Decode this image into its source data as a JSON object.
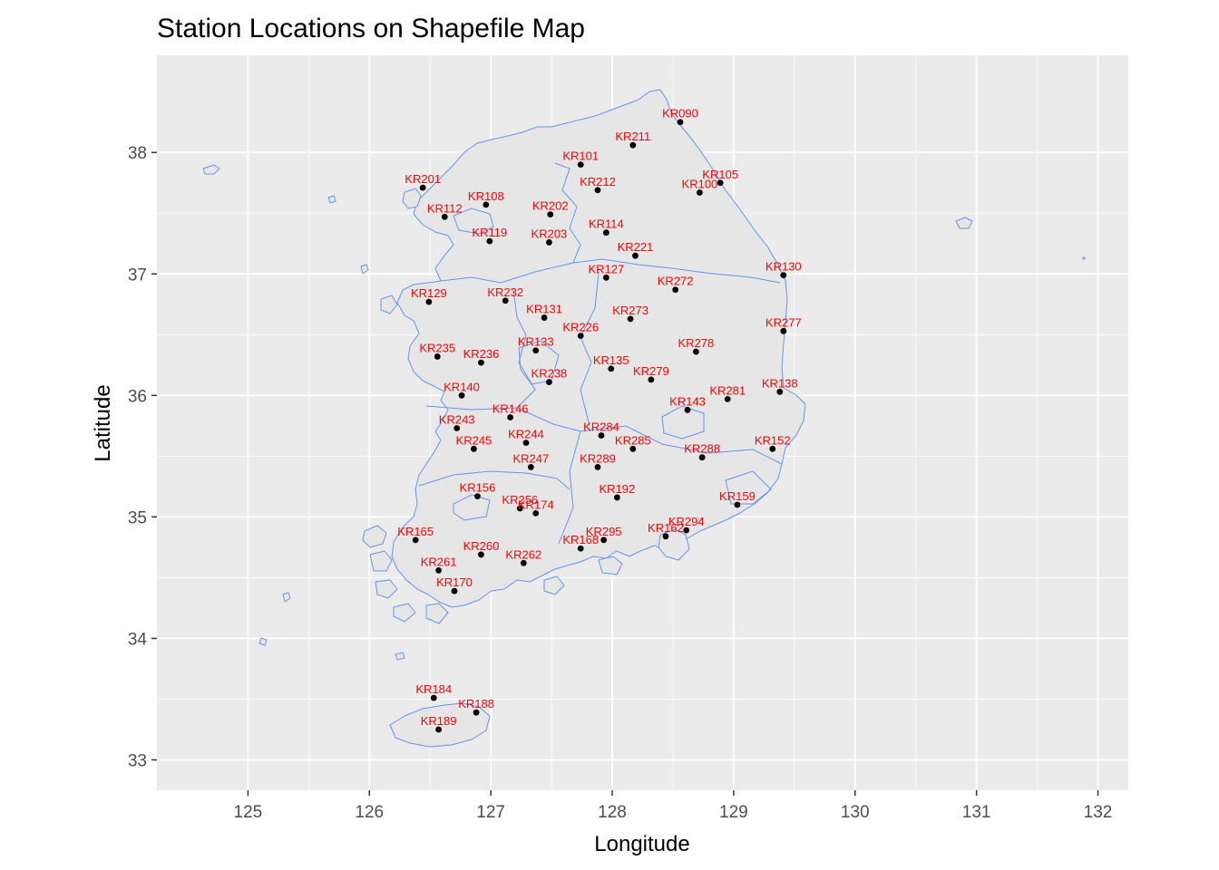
{
  "chart_data": {
    "type": "scatter",
    "title": "Station Locations on Shapefile Map",
    "xlabel": "Longitude",
    "ylabel": "Latitude",
    "xlim": [
      124.25,
      132.25
    ],
    "ylim": [
      32.75,
      38.8
    ],
    "x_ticks": [
      125,
      126,
      127,
      128,
      129,
      130,
      131,
      132
    ],
    "y_ticks": [
      33,
      34,
      35,
      36,
      37,
      38
    ],
    "grid": true,
    "colors": {
      "panel": "#ebebeb",
      "grid": "#ffffff",
      "land_fill": "#e6e6e6",
      "boundary": "#6495ed",
      "point": "#000000",
      "label": "#ff0000"
    },
    "stations": [
      {
        "id": "KR090",
        "lon": 128.56,
        "lat": 38.25
      },
      {
        "id": "KR211",
        "lon": 128.17,
        "lat": 38.06
      },
      {
        "id": "KR101",
        "lon": 127.74,
        "lat": 37.9
      },
      {
        "id": "KR105",
        "lon": 128.89,
        "lat": 37.75
      },
      {
        "id": "KR201",
        "lon": 126.44,
        "lat": 37.71
      },
      {
        "id": "KR212",
        "lon": 127.88,
        "lat": 37.69
      },
      {
        "id": "KR100",
        "lon": 128.72,
        "lat": 37.67
      },
      {
        "id": "KR108",
        "lon": 126.96,
        "lat": 37.57
      },
      {
        "id": "KR202",
        "lon": 127.49,
        "lat": 37.49
      },
      {
        "id": "KR112",
        "lon": 126.62,
        "lat": 37.47
      },
      {
        "id": "KR114",
        "lon": 127.95,
        "lat": 37.34
      },
      {
        "id": "KR119",
        "lon": 126.99,
        "lat": 37.27
      },
      {
        "id": "KR203",
        "lon": 127.48,
        "lat": 37.26
      },
      {
        "id": "KR221",
        "lon": 128.19,
        "lat": 37.15
      },
      {
        "id": "KR130",
        "lon": 129.41,
        "lat": 36.99
      },
      {
        "id": "KR127",
        "lon": 127.95,
        "lat": 36.97
      },
      {
        "id": "KR272",
        "lon": 128.52,
        "lat": 36.87
      },
      {
        "id": "KR129",
        "lon": 126.49,
        "lat": 36.77
      },
      {
        "id": "KR232",
        "lon": 127.12,
        "lat": 36.78
      },
      {
        "id": "KR131",
        "lon": 127.44,
        "lat": 36.64
      },
      {
        "id": "KR273",
        "lon": 128.15,
        "lat": 36.63
      },
      {
        "id": "KR277",
        "lon": 129.41,
        "lat": 36.53
      },
      {
        "id": "KR226",
        "lon": 127.74,
        "lat": 36.49
      },
      {
        "id": "KR133",
        "lon": 127.37,
        "lat": 36.37
      },
      {
        "id": "KR278",
        "lon": 128.69,
        "lat": 36.36
      },
      {
        "id": "KR235",
        "lon": 126.56,
        "lat": 36.32
      },
      {
        "id": "KR236",
        "lon": 126.92,
        "lat": 36.27
      },
      {
        "id": "KR135",
        "lon": 127.99,
        "lat": 36.22
      },
      {
        "id": "KR279",
        "lon": 128.32,
        "lat": 36.13
      },
      {
        "id": "KR238",
        "lon": 127.48,
        "lat": 36.11
      },
      {
        "id": "KR138",
        "lon": 129.38,
        "lat": 36.03
      },
      {
        "id": "KR140",
        "lon": 126.76,
        "lat": 36.0
      },
      {
        "id": "KR281",
        "lon": 128.95,
        "lat": 35.97
      },
      {
        "id": "KR143",
        "lon": 128.62,
        "lat": 35.88
      },
      {
        "id": "KR146",
        "lon": 127.16,
        "lat": 35.82
      },
      {
        "id": "KR243",
        "lon": 126.72,
        "lat": 35.73
      },
      {
        "id": "KR284",
        "lon": 127.91,
        "lat": 35.67
      },
      {
        "id": "KR244",
        "lon": 127.29,
        "lat": 35.61
      },
      {
        "id": "KR245",
        "lon": 126.86,
        "lat": 35.56
      },
      {
        "id": "KR285",
        "lon": 128.17,
        "lat": 35.56
      },
      {
        "id": "KR152",
        "lon": 129.32,
        "lat": 35.56
      },
      {
        "id": "KR288",
        "lon": 128.74,
        "lat": 35.49
      },
      {
        "id": "KR247",
        "lon": 127.33,
        "lat": 35.41
      },
      {
        "id": "KR289",
        "lon": 127.88,
        "lat": 35.41
      },
      {
        "id": "KR192",
        "lon": 128.04,
        "lat": 35.16
      },
      {
        "id": "KR156",
        "lon": 126.89,
        "lat": 35.17
      },
      {
        "id": "KR159",
        "lon": 129.03,
        "lat": 35.1
      },
      {
        "id": "KR256",
        "lon": 127.24,
        "lat": 35.07
      },
      {
        "id": "KR174",
        "lon": 127.37,
        "lat": 35.03
      },
      {
        "id": "KR294",
        "lon": 128.61,
        "lat": 34.89
      },
      {
        "id": "KR162",
        "lon": 128.44,
        "lat": 34.84
      },
      {
        "id": "KR295",
        "lon": 127.93,
        "lat": 34.81
      },
      {
        "id": "KR165",
        "lon": 126.38,
        "lat": 34.81
      },
      {
        "id": "KR168",
        "lon": 127.74,
        "lat": 34.74
      },
      {
        "id": "KR260",
        "lon": 126.92,
        "lat": 34.69
      },
      {
        "id": "KR262",
        "lon": 127.27,
        "lat": 34.62
      },
      {
        "id": "KR261",
        "lon": 126.57,
        "lat": 34.56
      },
      {
        "id": "KR170",
        "lon": 126.7,
        "lat": 34.39
      },
      {
        "id": "KR184",
        "lon": 126.53,
        "lat": 33.51
      },
      {
        "id": "KR188",
        "lon": 126.88,
        "lat": 33.39
      },
      {
        "id": "KR189",
        "lon": 126.57,
        "lat": 33.25
      }
    ]
  }
}
